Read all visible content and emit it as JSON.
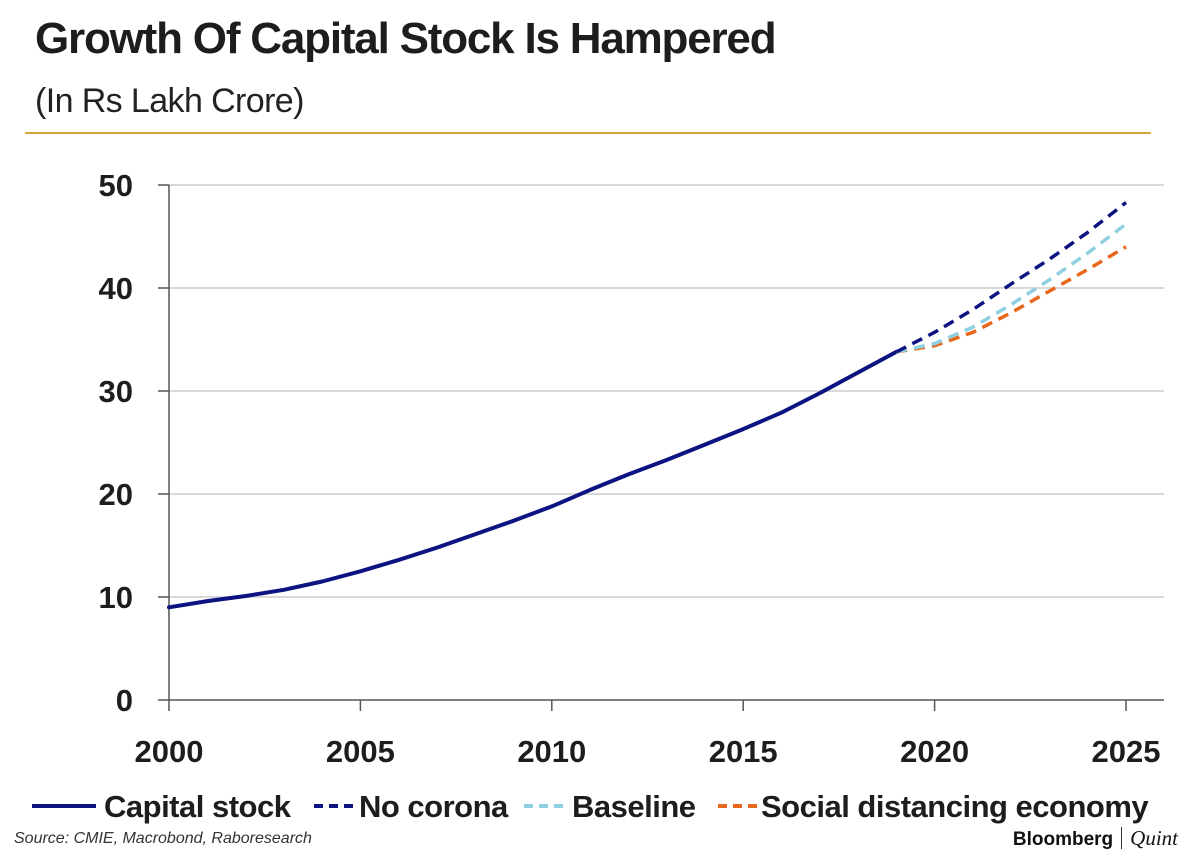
{
  "chart_data": {
    "type": "line",
    "title": "Growth Of Capital Stock Is Hampered",
    "subtitle": "(In Rs Lakh Crore)",
    "xlabel": "",
    "ylabel": "",
    "xlim": [
      2000,
      2025
    ],
    "ylim": [
      0,
      50
    ],
    "xticks": [
      2000,
      2005,
      2010,
      2015,
      2020,
      2025
    ],
    "yticks": [
      0,
      10,
      20,
      30,
      40,
      50
    ],
    "grid": "horizontal",
    "legend_position": "bottom",
    "series": [
      {
        "name": "Capital stock",
        "color": "#0d1380",
        "style": "solid",
        "x": [
          2000,
          2001,
          2002,
          2003,
          2004,
          2005,
          2006,
          2007,
          2008,
          2009,
          2010,
          2011,
          2012,
          2013,
          2014,
          2015,
          2016,
          2017,
          2018,
          2019
        ],
        "y": [
          9.0,
          9.6,
          10.1,
          10.7,
          11.5,
          12.5,
          13.6,
          14.8,
          16.1,
          17.4,
          18.8,
          20.4,
          21.9,
          23.3,
          24.8,
          26.3,
          27.9,
          29.8,
          31.8,
          33.8
        ]
      },
      {
        "name": "No corona",
        "color": "#0d1380",
        "style": "dashed",
        "x": [
          2019,
          2020,
          2021,
          2022,
          2023,
          2024,
          2025
        ],
        "y": [
          33.8,
          35.7,
          37.9,
          40.4,
          42.8,
          45.4,
          48.3
        ]
      },
      {
        "name": "Baseline",
        "color": "#8ecfe0",
        "style": "dashed",
        "x": [
          2019,
          2020,
          2021,
          2022,
          2023,
          2024,
          2025
        ],
        "y": [
          33.8,
          34.6,
          36.2,
          38.4,
          40.8,
          43.4,
          46.2
        ]
      },
      {
        "name": "Social distancing economy",
        "color": "#e8671c",
        "style": "dashed",
        "x": [
          2019,
          2020,
          2021,
          2022,
          2023,
          2024,
          2025
        ],
        "y": [
          33.8,
          34.4,
          35.7,
          37.6,
          39.7,
          41.8,
          44.0
        ]
      }
    ]
  },
  "footer": {
    "source": "Source: CMIE, Macrobond, Raboresearch",
    "brand_primary": "Bloomberg",
    "brand_secondary": "Quint"
  }
}
